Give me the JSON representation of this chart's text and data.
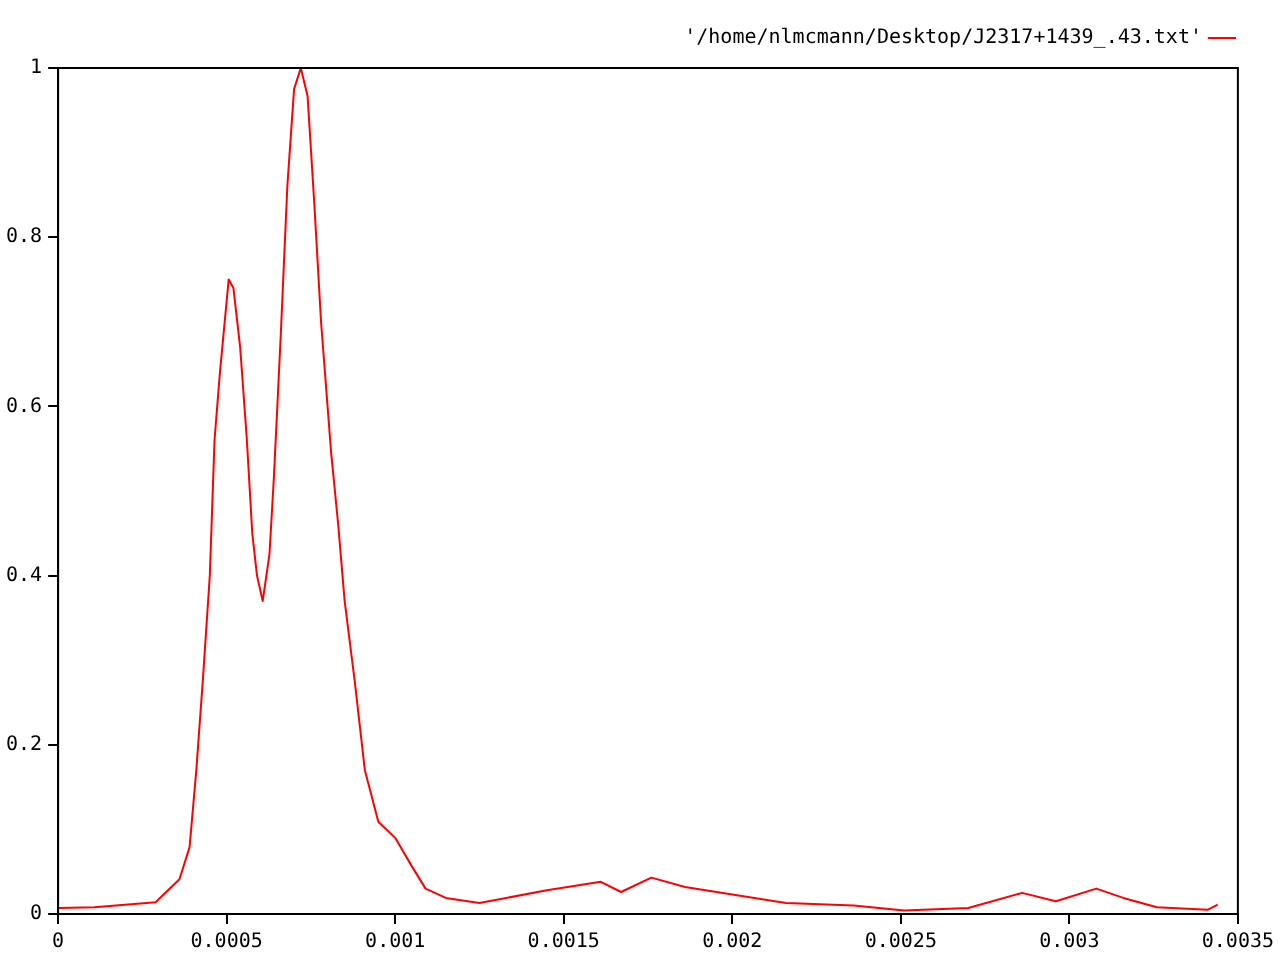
{
  "chart_data": {
    "type": "line",
    "xlim": [
      0,
      0.0035
    ],
    "ylim": [
      0,
      1
    ],
    "xticks": [
      0,
      0.0005,
      0.001,
      0.0015,
      0.002,
      0.0025,
      0.003,
      0.0035
    ],
    "yticks": [
      0,
      0.2,
      0.4,
      0.6,
      0.8,
      1
    ],
    "grid": false,
    "legend": "top right",
    "marker": "none",
    "line_style": "solid",
    "series": [
      {
        "name": "'/home/nlmcmann/Desktop/J2317+1439_.43.txt'",
        "color": "#ff0000",
        "x": [
          0,
          0.000108,
          0.000289,
          0.00036,
          0.00039,
          0.00041,
          0.00043,
          0.00045,
          0.000464,
          0.00048,
          0.000506,
          0.00052,
          0.00054,
          0.00056,
          0.000576,
          0.00059,
          0.000607,
          0.000627,
          0.00064,
          0.00066,
          0.00068,
          0.0007,
          0.00072,
          0.00074,
          0.00076,
          0.00078,
          0.00081,
          0.000831,
          0.00085,
          0.00088,
          0.00091,
          0.00095,
          0.001,
          0.00105,
          0.00109,
          0.00115,
          0.00125,
          0.00145,
          0.00161,
          0.00167,
          0.00176,
          0.00186,
          0.002,
          0.00216,
          0.00236,
          0.00251,
          0.0027,
          0.00286,
          0.00296,
          0.00308,
          0.00316,
          0.00326,
          0.00341,
          0.00344
        ],
        "values": [
          0.007,
          0.008,
          0.014,
          0.041,
          0.079,
          0.17,
          0.28,
          0.4,
          0.56,
          0.64,
          0.75,
          0.74,
          0.67,
          0.56,
          0.45,
          0.4,
          0.37,
          0.425,
          0.515,
          0.68,
          0.86,
          0.975,
          1.0,
          0.967,
          0.84,
          0.7,
          0.545,
          0.46,
          0.37,
          0.275,
          0.17,
          0.109,
          0.09,
          0.056,
          0.03,
          0.019,
          0.013,
          0.028,
          0.038,
          0.026,
          0.043,
          0.032,
          0.023,
          0.013,
          0.01,
          0.004,
          0.007,
          0.025,
          0.015,
          0.03,
          0.019,
          0.008,
          0.005,
          0.011
        ]
      }
    ]
  }
}
